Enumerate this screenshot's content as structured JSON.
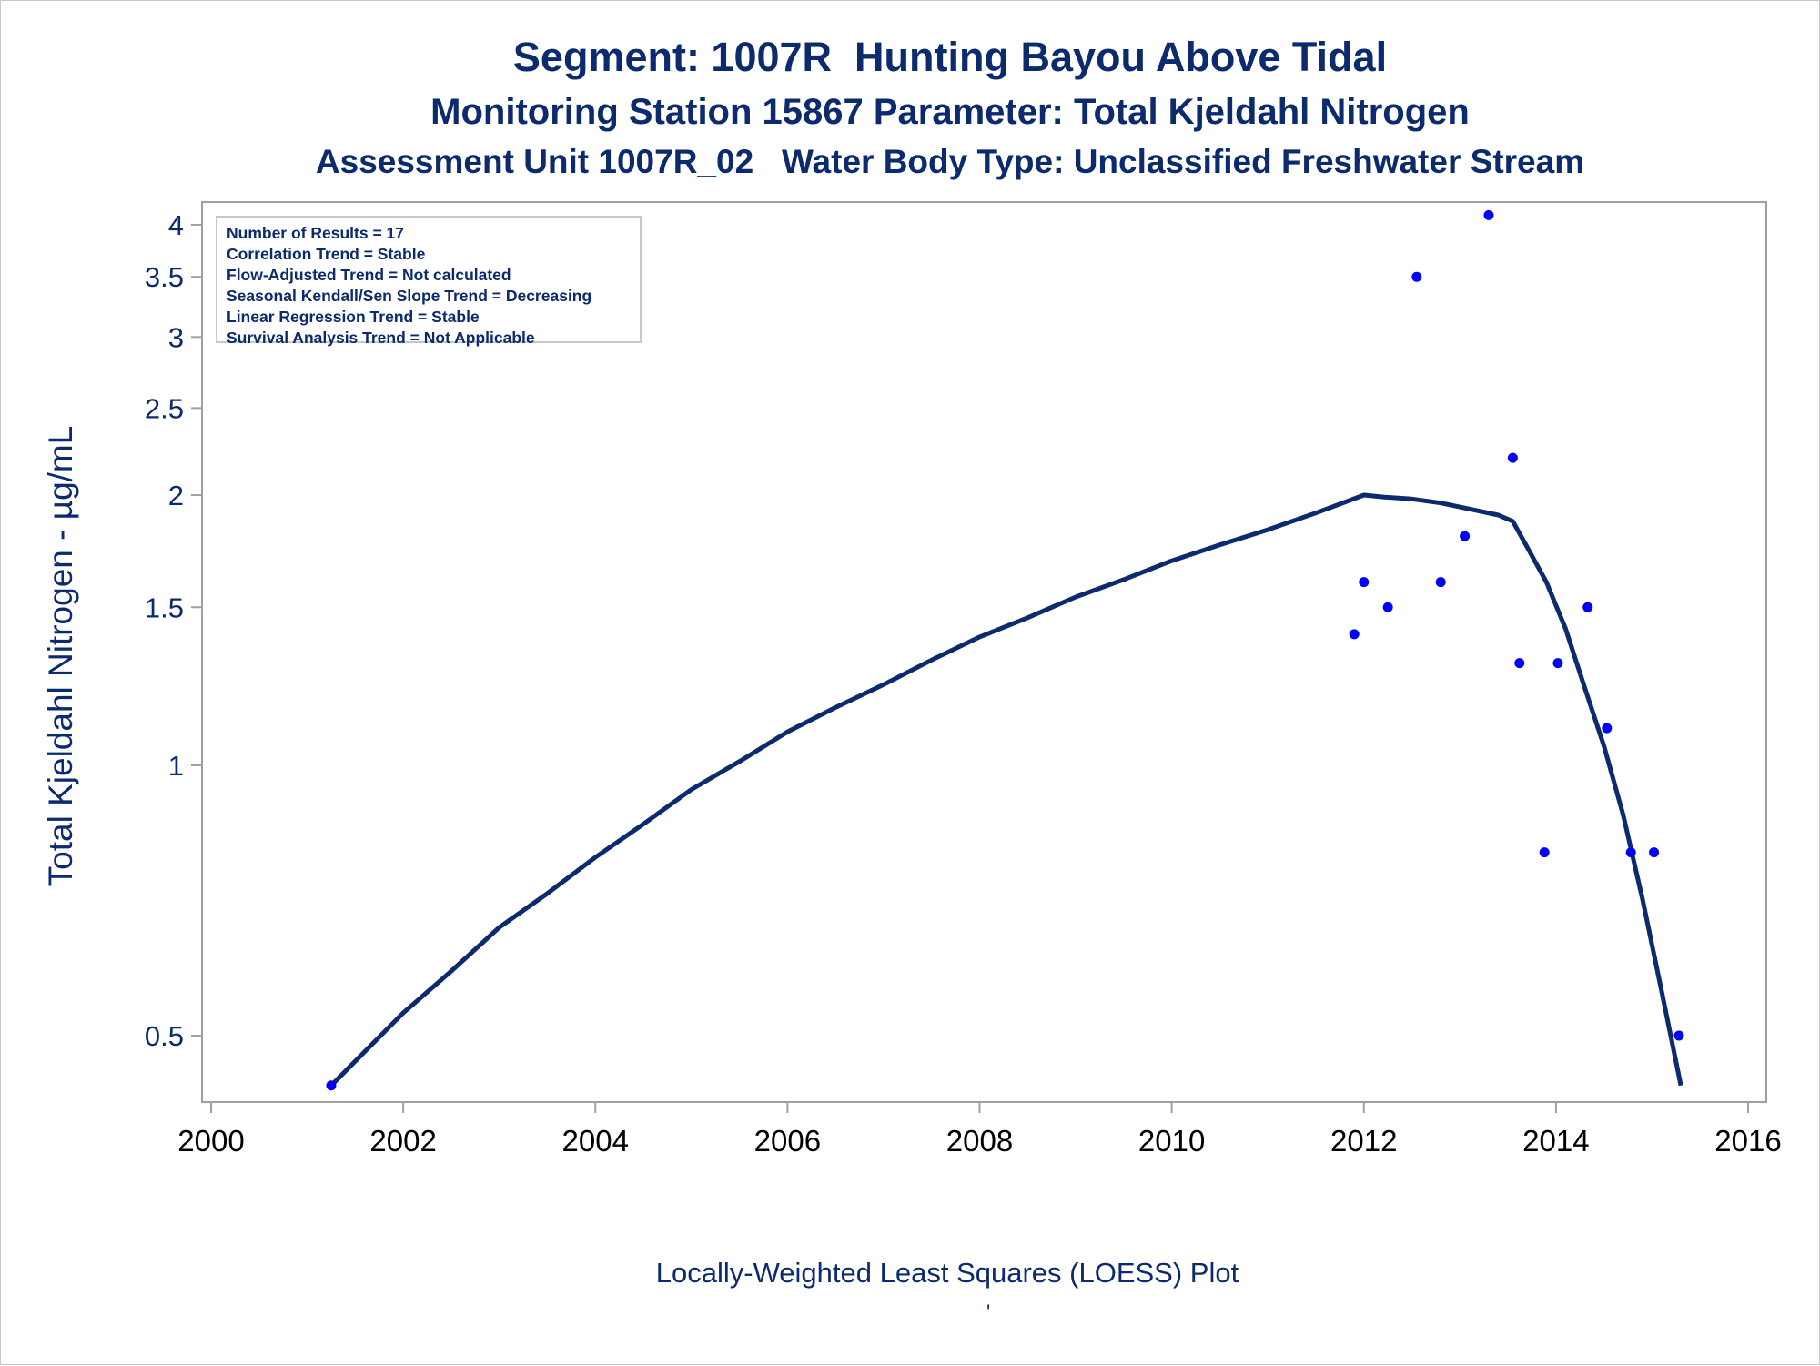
{
  "titles": {
    "line1": "Segment: 1007R  Hunting Bayou Above Tidal",
    "line2": "Monitoring Station 15867 Parameter: Total Kjeldahl Nitrogen",
    "line3": "Assessment Unit 1007R_02   Water Body Type: Unclassified Freshwater Stream"
  },
  "stats_box": [
    "Number of Results = 17",
    "Correlation Trend = Stable",
    "Flow-Adjusted Trend = Not calculated",
    "Seasonal Kendall/Sen Slope Trend = Decreasing",
    "Linear Regression Trend = Stable",
    "Survival Analysis Trend = Not Applicable"
  ],
  "footnote": "Locally-Weighted Least Squares (LOESS) Plot",
  "footnote_mark": "'",
  "colors": {
    "text": "#0c2a6e",
    "points": "#0000ff",
    "loess_line": "#0c2a6e",
    "frame": "#a0a0a0"
  },
  "chart_data": {
    "type": "scatter",
    "ylabel": "Total Kjeldahl Nitrogen -  µg/mL",
    "xlabel": "",
    "yscale": "log",
    "xlim": [
      2000,
      2016
    ],
    "ylim": [
      0.44,
      4.2
    ],
    "x_ticks": [
      "2000",
      "2002",
      "2004",
      "2006",
      "2008",
      "2010",
      "2012",
      "2014",
      "2016"
    ],
    "x_tick_values": [
      2000,
      2002,
      2004,
      2006,
      2008,
      2010,
      2012,
      2014,
      2016
    ],
    "y_ticks": [
      "0.5",
      "1",
      "1.5",
      "2",
      "2.5",
      "3",
      "3.5",
      "4"
    ],
    "y_tick_values": [
      0.5,
      1,
      1.5,
      2,
      2.5,
      3,
      3.5,
      4
    ],
    "series": [
      {
        "type": "scatter",
        "x": [
          2001.25,
          2011.9,
          2012.0,
          2012.25,
          2012.55,
          2012.8,
          2013.05,
          2013.3,
          2013.55,
          2013.62,
          2013.88,
          2014.02,
          2014.33,
          2014.53,
          2014.78,
          2015.02,
          2015.28
        ],
        "y": [
          0.44,
          1.4,
          1.6,
          1.5,
          3.5,
          1.6,
          1.8,
          4.1,
          2.2,
          1.3,
          0.8,
          1.3,
          1.5,
          1.1,
          0.8,
          0.8,
          0.5
        ]
      },
      {
        "type": "line",
        "x": [
          2001.25,
          2001.6,
          2002.0,
          2002.5,
          2003.0,
          2003.5,
          2004.0,
          2004.5,
          2005.0,
          2005.5,
          2006.0,
          2006.5,
          2007.0,
          2007.5,
          2008.0,
          2008.5,
          2009.0,
          2009.5,
          2010.0,
          2010.5,
          2011.0,
          2011.5,
          2012.0,
          2012.2,
          2012.5,
          2012.8,
          2013.1,
          2013.4,
          2013.55,
          2013.7,
          2013.9,
          2014.1,
          2014.3,
          2014.5,
          2014.7,
          2014.9,
          2015.1,
          2015.3
        ],
        "y": [
          0.44,
          0.48,
          0.53,
          0.59,
          0.66,
          0.72,
          0.79,
          0.86,
          0.94,
          1.01,
          1.09,
          1.16,
          1.23,
          1.31,
          1.39,
          1.46,
          1.54,
          1.61,
          1.69,
          1.76,
          1.83,
          1.91,
          2.0,
          1.99,
          1.98,
          1.96,
          1.93,
          1.9,
          1.87,
          1.75,
          1.6,
          1.42,
          1.22,
          1.05,
          0.88,
          0.71,
          0.56,
          0.44
        ]
      }
    ]
  }
}
